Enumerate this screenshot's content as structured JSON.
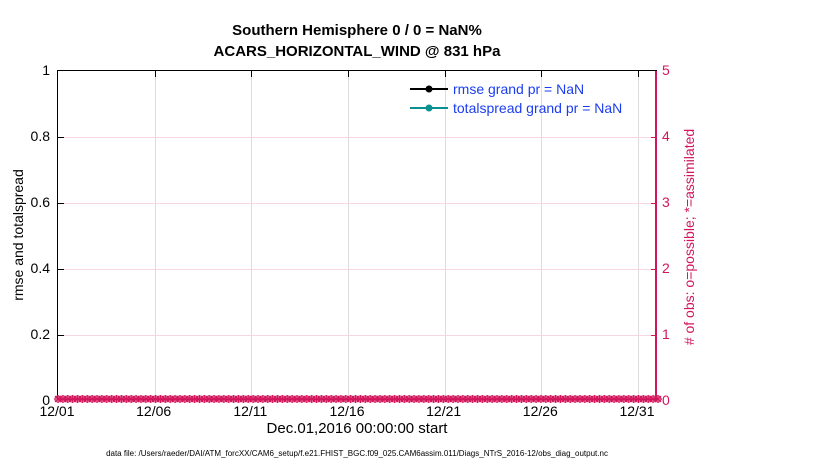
{
  "title": {
    "line1": "Southern Hemisphere 0 / 0 = NaN%",
    "line2": "ACARS_HORIZONTAL_WIND @ 831 hPa"
  },
  "axes": {
    "left": {
      "label": "rmse and totalspread",
      "ticks": [
        "0",
        "0.2",
        "0.4",
        "0.6",
        "0.8",
        "1"
      ],
      "color": "#000000"
    },
    "right": {
      "label": "# of obs: o=possible; *=assimilated",
      "ticks": [
        "0",
        "1",
        "2",
        "3",
        "4",
        "5"
      ],
      "color": "#d3165c"
    },
    "x": {
      "label": "Dec.01,2016 00:00:00 start",
      "ticks": [
        "12/01",
        "12/06",
        "12/11",
        "12/16",
        "12/21",
        "12/26",
        "12/31"
      ]
    }
  },
  "legend": {
    "entries": [
      {
        "label": "rmse grand pr = NaN",
        "color": "#000000"
      },
      {
        "label": "totalspread grand pr = NaN",
        "color": "#0b9191"
      }
    ],
    "text_color": "#1b3df2"
  },
  "footer": "data file: /Users/raeder/DAI/ATM_forcXX/CAM6_setup/f.e21.FHIST_BGC.f09_025.CAM6assim.011/Diags_NTrS_2016-12/obs_diag_output.nc",
  "chart_data": {
    "type": "line",
    "title": "Southern Hemisphere 0 / 0 = NaN%",
    "subtitle": "ACARS_HORIZONTAL_WIND @ 831 hPa",
    "xlabel": "Dec.01,2016 00:00:00 start",
    "ylabel_left": "rmse and totalspread",
    "ylabel_right": "# of obs: o=possible; *=assimilated",
    "x_tick_labels": [
      "12/01",
      "12/06",
      "12/11",
      "12/16",
      "12/21",
      "12/26",
      "12/31"
    ],
    "x_range_days": [
      0,
      31
    ],
    "ylim_left": [
      0,
      1
    ],
    "yticks_left": [
      0,
      0.2,
      0.4,
      0.6,
      0.8,
      1
    ],
    "ylim_right": [
      0,
      5
    ],
    "yticks_right": [
      0,
      1,
      2,
      3,
      4,
      5
    ],
    "grid": true,
    "legend_location": "inside top right, no box",
    "series": [
      {
        "name": "rmse grand pr = NaN",
        "axis": "left",
        "color": "#000000",
        "marker": "filled-circle",
        "values": [],
        "note": "all NaN, no line drawn"
      },
      {
        "name": "totalspread grand pr = NaN",
        "axis": "left",
        "color": "#0b9191",
        "marker": "filled-circle",
        "values": [],
        "note": "all NaN, no line drawn"
      },
      {
        "name": "observations possible (o)",
        "axis": "right",
        "color": "#d3165c",
        "marker": "circle-outline",
        "n_bins": 124,
        "constant_value": 0
      },
      {
        "name": "observations assimilated (*)",
        "axis": "right",
        "color": "#d3165c",
        "marker": "asterisk",
        "n_bins": 124,
        "constant_value": 0
      }
    ]
  }
}
